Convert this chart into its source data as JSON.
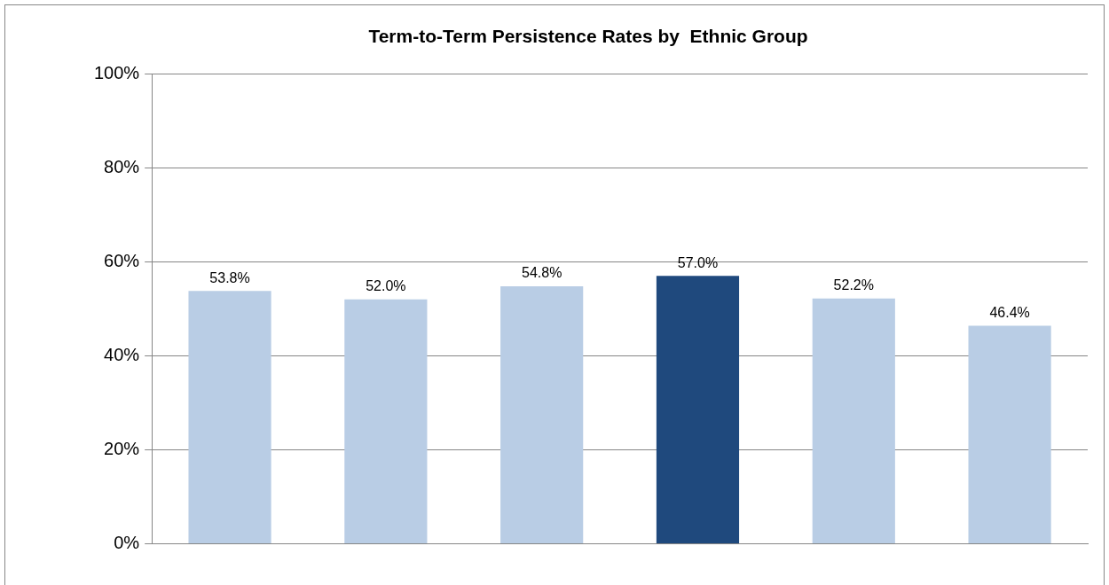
{
  "chart_data": {
    "type": "bar",
    "title": "Term-to-Term Persistence Rates by  Ethnic Group",
    "categories": [
      null,
      null,
      null,
      null,
      null,
      null
    ],
    "values": [
      53.8,
      52.0,
      54.8,
      57.0,
      52.2,
      46.4
    ],
    "colors": [
      "#b9cde5",
      "#b9cde5",
      "#b9cde5",
      "#1f497d",
      "#b9cde5",
      "#b9cde5"
    ],
    "value_labels": [
      "53.8%",
      "52.0%",
      "54.8%",
      "57.0%",
      "52.2%",
      "46.4%"
    ],
    "ylim": [
      0,
      100
    ],
    "yticks": [
      {
        "value": 0,
        "label": "0%"
      },
      {
        "value": 20,
        "label": "20%"
      },
      {
        "value": 40,
        "label": "40%"
      },
      {
        "value": 60,
        "label": "60%"
      },
      {
        "value": 80,
        "label": "80%"
      },
      {
        "value": 100,
        "label": "100%"
      }
    ],
    "grid": "y",
    "legend": false
  }
}
